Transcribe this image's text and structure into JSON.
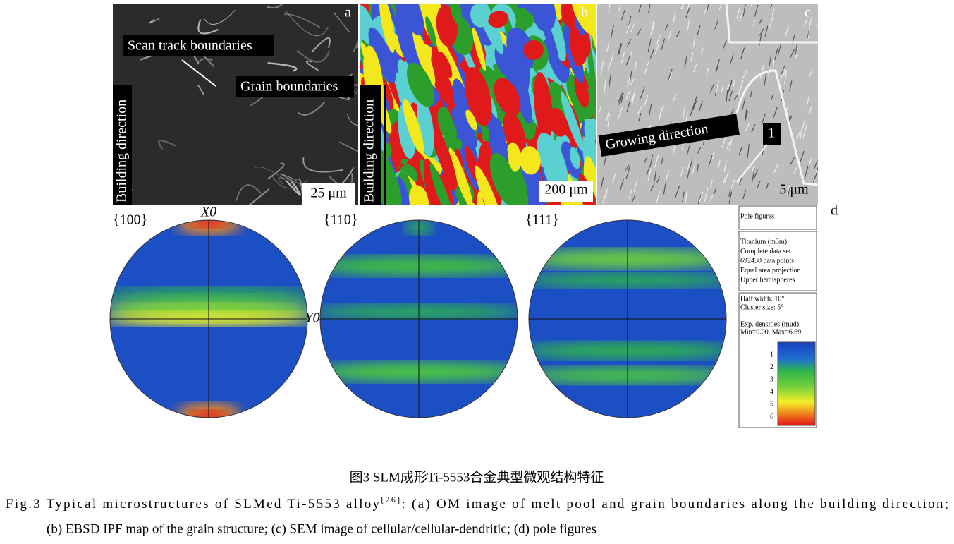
{
  "panels": {
    "a": {
      "letter": "a",
      "scan_track_label": "Scan track boundaries",
      "grain_label": "Grain boundaries",
      "direction_label": "Building direction",
      "scale_bar": "25 μm"
    },
    "b": {
      "letter": "b",
      "direction_label": "Building direction",
      "scale_bar": "200 μm"
    },
    "c": {
      "letter": "c",
      "direction_label": "Growing direction",
      "feature_label": "1",
      "scale_bar": "5 μm"
    },
    "d": {
      "letter": "d",
      "pole_figures": [
        {
          "label": "{100}",
          "x_axis": "X0",
          "y_axis": "Y0"
        },
        {
          "label": "{110}"
        },
        {
          "label": "{111}"
        }
      ],
      "legend": {
        "title": "Pole figures",
        "info": [
          "Titanium (m3m)",
          "Complete data set",
          "692430 data points",
          "Equal area projection",
          "Upper hemispheres"
        ],
        "settings": [
          "Half width: 10°",
          "Cluster size: 5°"
        ],
        "density_title": "Exp. densities (mud):",
        "density_range": "Min=0.00, Max=6.69",
        "scale_labels": [
          "1",
          "2",
          "3",
          "4",
          "5",
          "6"
        ]
      }
    }
  },
  "caption": {
    "chinese": "图3  SLM成形Ti-5553合金典型微观结构特征",
    "fig_label": "Fig.3",
    "text_1": "Typical microstructures of SLMed Ti-5553 alloy",
    "reference": "[26]",
    "text_2": ": (a) OM image of melt pool and grain boundaries along the building direction;",
    "text_3": "(b) EBSD IPF map of the grain structure; (c) SEM image of cellular/cellular-dendritic; (d) pole figures"
  }
}
